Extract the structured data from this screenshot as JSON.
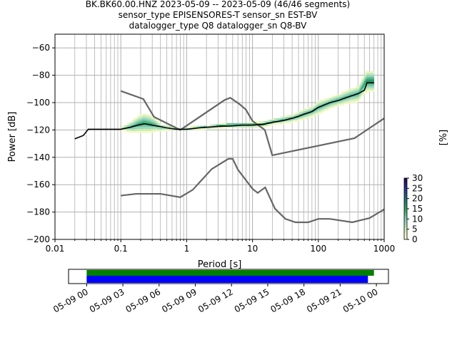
{
  "title": {
    "line1": "BK.BK60.00.HNZ   2023-05-09 -- 2023-05-09  (46/46 segments)",
    "line2": "sensor_type EPISENSORES-T sensor_sn EST-BV",
    "line3": "datalogger_type Q8 datalogger_sn Q8-BV"
  },
  "chart_data": [
    {
      "type": "heatmap",
      "name": "ppsd",
      "xlabel": "Period [s]",
      "ylabel": "Power [dB]",
      "xscale": "log",
      "xlim": [
        0.01,
        1000
      ],
      "ylim": [
        -200,
        -50
      ],
      "x_ticks": [
        0.01,
        0.1,
        1,
        10,
        100,
        1000
      ],
      "x_tick_labels": [
        "0.01",
        "0.1",
        "1",
        "10",
        "100",
        "1000"
      ],
      "y_ticks": [
        -200,
        -180,
        -160,
        -140,
        -120,
        -100,
        -80,
        -60
      ],
      "y_tick_labels": [
        "−200",
        "−180",
        "−160",
        "−140",
        "−120",
        "−100",
        "−80",
        "−60"
      ],
      "grid": true,
      "colorbar": {
        "label": "[%]",
        "ticks": [
          0,
          5,
          10,
          15,
          20,
          25,
          30
        ],
        "tick_labels": [
          "0",
          "5",
          "10",
          "15",
          "20",
          "25",
          "30"
        ],
        "range": [
          0,
          30
        ],
        "colormap": [
          "#ffffcc",
          "#c7e9b4",
          "#7fcdbb",
          "#2ca25f",
          "#1d6f7a",
          "#253494",
          "#2d004b"
        ]
      },
      "mean_curve": {
        "color": "#000000",
        "points": [
          [
            0.02,
            -126.5
          ],
          [
            0.027,
            -124
          ],
          [
            0.032,
            -119.5
          ],
          [
            0.05,
            -119.5
          ],
          [
            0.1,
            -119.5
          ],
          [
            0.14,
            -118
          ],
          [
            0.18,
            -116.5
          ],
          [
            0.23,
            -115.5
          ],
          [
            0.3,
            -116.5
          ],
          [
            0.4,
            -117.5
          ],
          [
            0.5,
            -118.5
          ],
          [
            0.7,
            -119.5
          ],
          [
            1.0,
            -119.5
          ],
          [
            1.5,
            -118.5
          ],
          [
            2.0,
            -118
          ],
          [
            3.0,
            -117.5
          ],
          [
            5.0,
            -117
          ],
          [
            7.0,
            -116.5
          ],
          [
            10,
            -116.5
          ],
          [
            14,
            -116
          ],
          [
            20,
            -114.5
          ],
          [
            30,
            -113
          ],
          [
            40,
            -111.5
          ],
          [
            50,
            -110
          ],
          [
            60,
            -108.5
          ],
          [
            80,
            -106.5
          ],
          [
            100,
            -103.5
          ],
          [
            150,
            -100
          ],
          [
            200,
            -98.5
          ],
          [
            300,
            -95.5
          ],
          [
            400,
            -93.5
          ],
          [
            500,
            -91
          ],
          [
            550,
            -85.5
          ],
          [
            700,
            -85.5
          ]
        ]
      },
      "density_band": {
        "points": [
          [
            0.1,
            -120,
            -119,
            8
          ],
          [
            0.12,
            -121,
            -117,
            12
          ],
          [
            0.15,
            -122,
            -114,
            14
          ],
          [
            0.18,
            -122,
            -111,
            15
          ],
          [
            0.22,
            -122,
            -109,
            16
          ],
          [
            0.27,
            -122,
            -110,
            15
          ],
          [
            0.33,
            -121,
            -113,
            14
          ],
          [
            0.4,
            -121,
            -117,
            12
          ],
          [
            0.5,
            -120,
            -118,
            10
          ],
          [
            0.7,
            -120,
            -119,
            12
          ],
          [
            1.0,
            -120,
            -119,
            14
          ],
          [
            2.0,
            -119,
            -118,
            16
          ],
          [
            4.0,
            -118,
            -116,
            18
          ],
          [
            8.0,
            -118,
            -116,
            18
          ],
          [
            14,
            -118,
            -115,
            16
          ],
          [
            20,
            -116,
            -113,
            14
          ],
          [
            30,
            -115,
            -111,
            14
          ],
          [
            40,
            -114,
            -110,
            14
          ],
          [
            50,
            -113,
            -108,
            14
          ],
          [
            60,
            -112,
            -106,
            14
          ],
          [
            80,
            -110,
            -104,
            14
          ],
          [
            100,
            -108,
            -100,
            14
          ],
          [
            150,
            -104,
            -97,
            14
          ],
          [
            200,
            -102,
            -95,
            14
          ],
          [
            300,
            -100,
            -91,
            14
          ],
          [
            400,
            -99,
            -89,
            14
          ],
          [
            500,
            -93,
            -80,
            16
          ],
          [
            550,
            -92,
            -78,
            18
          ],
          [
            700,
            -92,
            -78,
            18
          ]
        ]
      },
      "reference_models": [
        {
          "name": "high_noise_model",
          "color": "#666666",
          "points": [
            [
              0.1,
              -91.5
            ],
            [
              0.22,
              -97.4
            ],
            [
              0.32,
              -110.5
            ],
            [
              0.8,
              -120
            ],
            [
              3.8,
              -98
            ],
            [
              4.6,
              -96.5
            ],
            [
              6.3,
              -101
            ],
            [
              7.9,
              -105
            ],
            [
              10,
              -113.4
            ],
            [
              15.4,
              -120
            ],
            [
              20,
              -138.5
            ],
            [
              354.8,
              -126
            ],
            [
              1000,
              -111.5
            ]
          ]
        },
        {
          "name": "low_noise_model",
          "color": "#666666",
          "points": [
            [
              0.1,
              -168
            ],
            [
              0.17,
              -166.7
            ],
            [
              0.4,
              -166.7
            ],
            [
              0.8,
              -169.2
            ],
            [
              1.24,
              -163.7
            ],
            [
              2.4,
              -148.6
            ],
            [
              4.3,
              -141.1
            ],
            [
              5.0,
              -141.1
            ],
            [
              6.0,
              -149
            ],
            [
              10,
              -163
            ],
            [
              12,
              -166
            ],
            [
              15.6,
              -162
            ],
            [
              21.9,
              -177.5
            ],
            [
              31.6,
              -185
            ],
            [
              45,
              -187.5
            ],
            [
              70,
              -187.5
            ],
            [
              100,
              -185
            ],
            [
              150,
              -185
            ],
            [
              328,
              -187.5
            ],
            [
              600,
              -184.4
            ],
            [
              1000,
              -178
            ]
          ]
        }
      ]
    },
    {
      "type": "timeline",
      "name": "data_coverage",
      "ticks": [
        "05-09 00",
        "05-09 03",
        "05-09 06",
        "05-09 09",
        "05-09 12",
        "05-09 15",
        "05-09 18",
        "05-09 21",
        "05-10 00"
      ],
      "xlim_hours": [
        -1.5,
        25
      ],
      "bars": [
        {
          "name": "data",
          "color": "#008000",
          "start_hour": 0,
          "end_hour": 23.8
        },
        {
          "name": "ppsd",
          "color": "#0000ff",
          "start_hour": 0,
          "end_hour": 23.3
        }
      ]
    }
  ]
}
